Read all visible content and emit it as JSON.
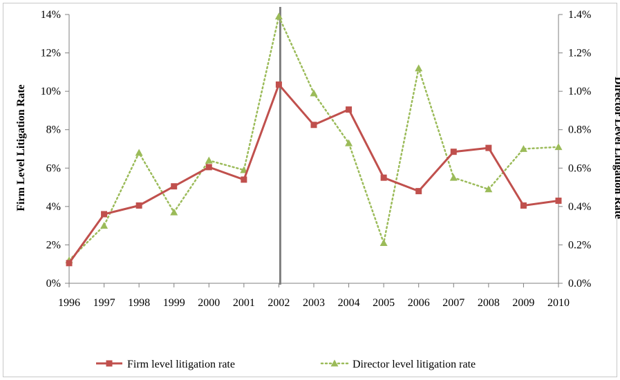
{
  "chart_data": {
    "type": "line",
    "title": "",
    "x": [
      "1996",
      "1997",
      "1998",
      "1999",
      "2000",
      "2001",
      "2002",
      "2003",
      "2004",
      "2005",
      "2006",
      "2007",
      "2008",
      "2009",
      "2010"
    ],
    "y_left": {
      "label": "Firm Level Litigation Rate",
      "ticks": [
        "0%",
        "2%",
        "4%",
        "6%",
        "8%",
        "10%",
        "12%",
        "14%"
      ],
      "ylim": [
        0,
        14
      ]
    },
    "y_right": {
      "label": "Director Level Litigation Rate",
      "ticks": [
        "0.0%",
        "0.2%",
        "0.4%",
        "0.6%",
        "0.8%",
        "1.0%",
        "1.2%",
        "1.4%"
      ],
      "ylim": [
        0,
        1.4
      ]
    },
    "series": [
      {
        "name": "Firm level litigation rate",
        "axis": "left",
        "color": "#c0504d",
        "marker": "square",
        "line": "solid",
        "values": [
          1.05,
          3.6,
          4.05,
          5.05,
          6.05,
          5.4,
          10.35,
          8.25,
          9.05,
          5.5,
          4.8,
          6.85,
          7.05,
          4.05,
          4.3
        ]
      },
      {
        "name": "Director level litigation rate",
        "axis": "right",
        "color": "#9bbb59",
        "marker": "triangle",
        "line": "dotted",
        "values": [
          0.12,
          0.3,
          0.68,
          0.37,
          0.64,
          0.59,
          1.39,
          0.99,
          0.73,
          0.21,
          1.12,
          0.55,
          0.49,
          0.7,
          0.71
        ]
      }
    ],
    "reference_line": {
      "x": "2002",
      "color": "#7f7f7f"
    },
    "grid": false,
    "legend": "bottom"
  }
}
